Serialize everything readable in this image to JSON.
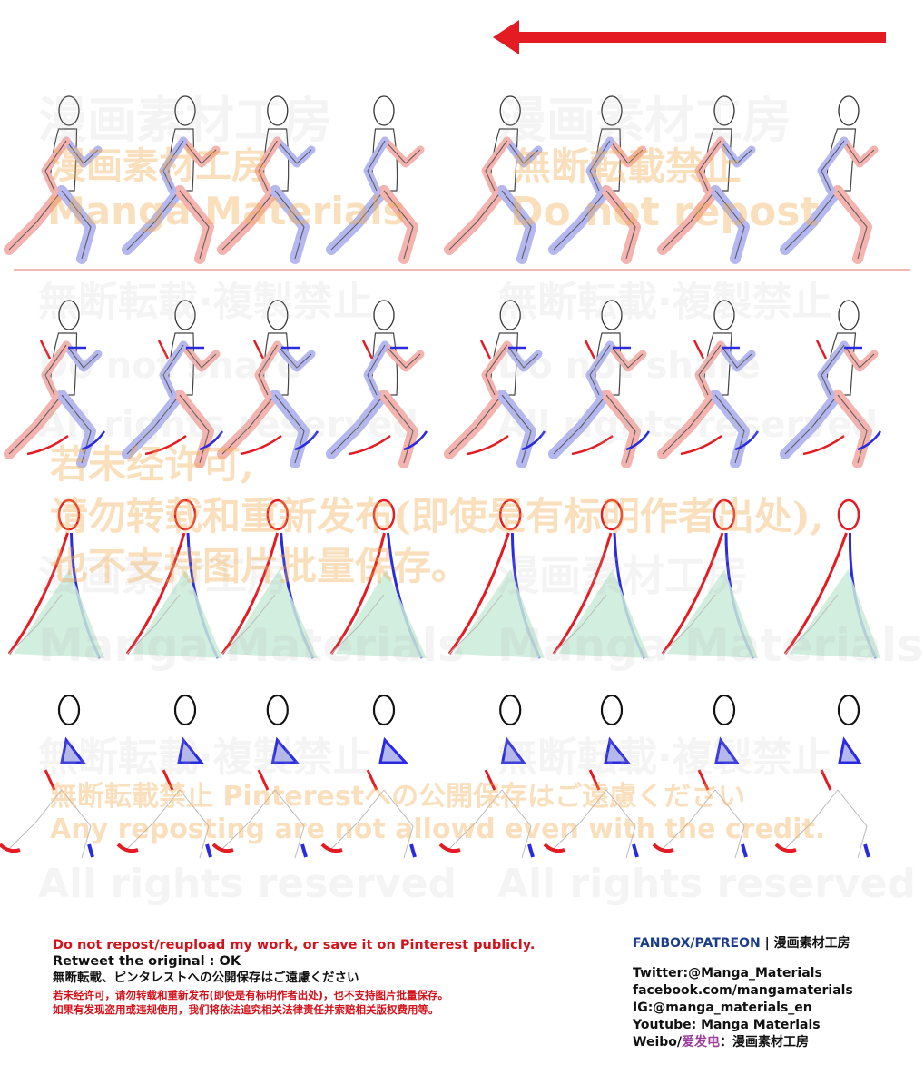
{
  "colors": {
    "red": "#e41b22",
    "blue": "#2a2ae0",
    "pink_fill": "#f3b3ae",
    "blue_fill": "#b4b8ee",
    "green_fill": "#c9ebd8",
    "footer_red": "#d4121b",
    "fanbox_blue": "#1c3d8c",
    "weibo_purple": "#9b3d9b"
  },
  "watermarks": {
    "studio_cn": "漫画素材工房",
    "studio_en": "Manga Materials",
    "no_repost_jp": "無断転載禁止",
    "do_not_repost": "Do not repost",
    "no_copy_jp": "無断転載·複製禁止",
    "do_not_share": "Do not share",
    "all_rights": "All rights reserved",
    "cn_line1": "若未经许可,",
    "cn_line2": "请勿转载和重新发布(即使是有标明作者出处),",
    "cn_line3": "也不支持图片批量保存。",
    "jp_pinterest": "無断転載禁止 Pinterestへの公開保存はご遠慮ください",
    "en_credit": "Any reposting are not allowd even with the credit."
  },
  "footer": {
    "line_en": "Do not repost/reupload my work, or save it on Pinterest publicly.",
    "line_retweet": "Retweet the original : OK",
    "line_jp": "無断転載、ピンタレストへの公開保存はご遠慮ください",
    "line_cn1": "若未经许可，请勿转载和重新发布(即使是有标明作者出处)，也不支持图片批量保存。",
    "line_cn2": "如果有发现盗用或违规使用，我们将依法追究相关法律责任并索赔相关版权费用等。",
    "fanbox_label": "FANBOX/PATREON",
    "fanbox_sep": " | ",
    "fanbox_name": "漫画素材工房",
    "twitter": "Twitter:@Manga_Materials",
    "facebook": "facebook.com/mangamaterials",
    "ig": "IG:@manga_materials_en",
    "youtube": "Youtube: Manga Materials",
    "weibo_prefix": "Weibo/",
    "weibo_name": "爱发电",
    "weibo_suffix": "：漫画素材工房"
  }
}
